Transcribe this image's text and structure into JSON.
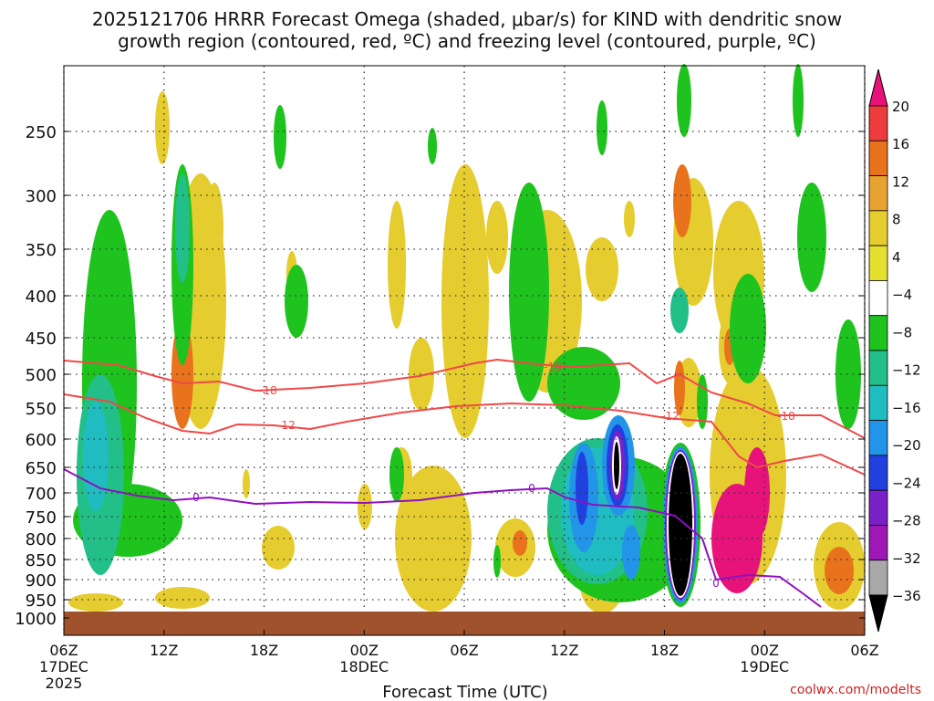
{
  "chart_data": {
    "type": "heatmap",
    "title_line1": "2025121706 HRRR Forecast Omega (shaded, μbar/s) for KIND with dendritic snow",
    "title_line2": "growth region (contoured, red, ºC) and freezing level (contoured, purple, ºC)",
    "xlabel": "Forecast Time (UTC)",
    "credit": "coolwx.com/modelts",
    "x_ticks": [
      {
        "hour": 0,
        "label": "06Z",
        "date": "17DEC",
        "year": "2025"
      },
      {
        "hour": 6,
        "label": "12Z"
      },
      {
        "hour": 12,
        "label": "18Z"
      },
      {
        "hour": 18,
        "label": "00Z",
        "date": "18DEC"
      },
      {
        "hour": 24,
        "label": "06Z"
      },
      {
        "hour": 30,
        "label": "12Z"
      },
      {
        "hour": 36,
        "label": "18Z"
      },
      {
        "hour": 42,
        "label": "00Z",
        "date": "19DEC"
      },
      {
        "hour": 48,
        "label": "06Z"
      }
    ],
    "y_ticks": [
      "250",
      "300",
      "350",
      "400",
      "450",
      "500",
      "550",
      "600",
      "650",
      "700",
      "750",
      "800",
      "850",
      "900",
      "950",
      "1000"
    ],
    "ylim": [
      1000,
      200
    ],
    "colorbar": {
      "labels": [
        "20",
        "16",
        "12",
        "8",
        "4",
        "−4",
        "−8",
        "−12",
        "−16",
        "−20",
        "−24",
        "−28",
        "−32",
        "−36"
      ],
      "colors": [
        "#e8137a",
        "#ee3b3b",
        "#e9721c",
        "#e7a22f",
        "#e5cc2f",
        "#e5e030",
        "#ffffff",
        "#1ec31e",
        "#22bf88",
        "#1fbcc2",
        "#2395e8",
        "#2040e0",
        "#7a20c8",
        "#9d18b5",
        "#a8a8a8",
        "#000000"
      ]
    },
    "contours": [
      {
        "name": "dendritic",
        "level": "-18",
        "color": "#f04848"
      },
      {
        "name": "dendritic",
        "level": "-12",
        "color": "#f04848"
      },
      {
        "name": "freezing",
        "level": "0",
        "color": "#9010c0"
      }
    ],
    "ground_color": "#a0522d"
  }
}
